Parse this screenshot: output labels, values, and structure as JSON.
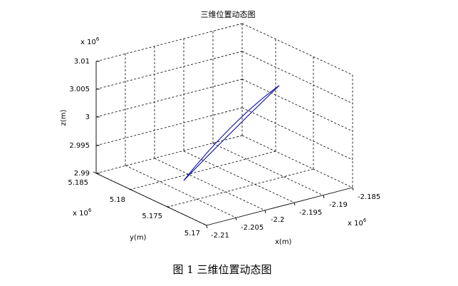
{
  "chart_data": {
    "type": "line3d",
    "title": "三维位置动态图",
    "xlabel": "x(m)",
    "ylabel": "y(m)",
    "zlabel": "z(m)",
    "x_exponent": "x 10",
    "y_exponent": "x 10",
    "z_exponent": "x 10",
    "exponent_power": "6",
    "xlim": [
      -2.21,
      -2.185
    ],
    "ylim": [
      5.17,
      5.185
    ],
    "zlim": [
      2.99,
      3.01
    ],
    "xticks": [
      "-2.21",
      "-2.205",
      "-2.2",
      "-2.195",
      "-2.19",
      "-2.185"
    ],
    "yticks": [
      "5.17",
      "5.175",
      "5.18",
      "5.185"
    ],
    "zticks": [
      "2.99",
      "2.995",
      "3",
      "3.005",
      "3.01"
    ],
    "grid": true,
    "series": [
      {
        "color": "#1a1aa6",
        "description_values_x1e6": {
          "start": {
            "x": -2.209,
            "y": 5.178,
            "z": 2.9905
          },
          "end": {
            "x": -2.2045,
            "y": 5.1838,
            "z": 3.0065
          }
        }
      }
    ]
  },
  "figure_caption": "图 1  三维位置动态图"
}
